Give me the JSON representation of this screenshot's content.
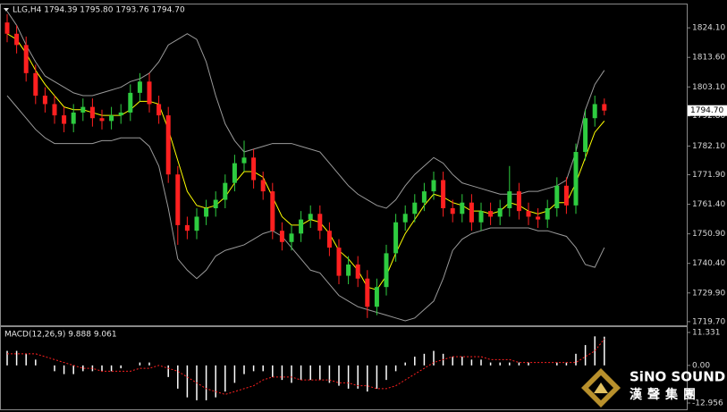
{
  "chart_data": [
    {
      "type": "candlestick",
      "title": "LLG,H4  1794.39 1795.80 1793.76 1794.70",
      "up_color": "#2ecc40",
      "down_color": "#ff2020",
      "open": [
        1826,
        1822,
        1818,
        1808,
        1800,
        1797,
        1793,
        1790,
        1794,
        1796,
        1792,
        1791,
        1793,
        1794,
        1801,
        1805,
        1797,
        1793,
        1772,
        1754,
        1752,
        1757,
        1760,
        1763,
        1769,
        1776,
        1778,
        1770,
        1766,
        1752,
        1748,
        1751,
        1756,
        1758,
        1752,
        1746,
        1736,
        1740,
        1735,
        1725,
        1732,
        1744,
        1755,
        1758,
        1762,
        1766,
        1770,
        1760,
        1758,
        1762,
        1755,
        1759,
        1757,
        1760,
        1766,
        1759,
        1757,
        1756,
        1760,
        1768,
        1761,
        1780,
        1792,
        1797
      ],
      "high": [
        1829,
        1825,
        1821,
        1811,
        1803,
        1800,
        1796,
        1797,
        1799,
        1799,
        1795,
        1796,
        1797,
        1804,
        1808,
        1808,
        1800,
        1796,
        1775,
        1757,
        1760,
        1763,
        1766,
        1772,
        1779,
        1784,
        1781,
        1773,
        1769,
        1755,
        1754,
        1759,
        1761,
        1761,
        1755,
        1749,
        1743,
        1743,
        1738,
        1735,
        1747,
        1758,
        1761,
        1765,
        1769,
        1773,
        1773,
        1763,
        1765,
        1765,
        1762,
        1762,
        1763,
        1775,
        1769,
        1762,
        1760,
        1763,
        1771,
        1771,
        1783,
        1795,
        1800,
        1799
      ],
      "low": [
        1819,
        1815,
        1805,
        1797,
        1794,
        1790,
        1787,
        1787,
        1791,
        1789,
        1788,
        1788,
        1790,
        1791,
        1798,
        1794,
        1790,
        1769,
        1747,
        1749,
        1749,
        1754,
        1757,
        1760,
        1766,
        1773,
        1767,
        1763,
        1749,
        1745,
        1745,
        1748,
        1753,
        1749,
        1743,
        1733,
        1733,
        1732,
        1721,
        1722,
        1729,
        1741,
        1752,
        1755,
        1759,
        1763,
        1757,
        1755,
        1755,
        1752,
        1752,
        1754,
        1754,
        1757,
        1756,
        1754,
        1753,
        1753,
        1757,
        1758,
        1758,
        1777,
        1789,
        1793
      ],
      "close": [
        1822,
        1818,
        1808,
        1800,
        1797,
        1793,
        1790,
        1794,
        1796,
        1792,
        1791,
        1793,
        1794,
        1801,
        1805,
        1797,
        1793,
        1772,
        1754,
        1752,
        1757,
        1760,
        1763,
        1769,
        1776,
        1778,
        1770,
        1766,
        1752,
        1748,
        1751,
        1756,
        1758,
        1752,
        1746,
        1736,
        1740,
        1735,
        1725,
        1732,
        1744,
        1755,
        1758,
        1762,
        1766,
        1770,
        1760,
        1758,
        1762,
        1755,
        1759,
        1757,
        1760,
        1766,
        1759,
        1757,
        1756,
        1760,
        1768,
        1761,
        1780,
        1792,
        1797,
        1794.7
      ],
      "series": [
        {
          "color": "#9a9a9a",
          "values": [
            1830,
            1825,
            1818,
            1812,
            1807,
            1805,
            1803,
            1801,
            1800,
            1800,
            1801,
            1802,
            1803,
            1805,
            1806,
            1808,
            1812,
            1818,
            1820,
            1822,
            1820,
            1812,
            1800,
            1790,
            1784,
            1780,
            1781,
            1782,
            1783,
            1783,
            1783,
            1782,
            1781,
            1780,
            1776,
            1772,
            1768,
            1765,
            1763,
            1761,
            1760,
            1763,
            1768,
            1772,
            1775,
            1778,
            1776,
            1772,
            1769,
            1768,
            1767,
            1766,
            1765,
            1765,
            1765,
            1766,
            1766,
            1767,
            1768,
            1770,
            1780,
            1795,
            1804,
            1809
          ]
        },
        {
          "color": "#9a9a9a",
          "values": [
            1800,
            1796,
            1792,
            1788,
            1785,
            1783,
            1783,
            1783,
            1783,
            1783,
            1784,
            1784,
            1785,
            1785,
            1785,
            1782,
            1775,
            1760,
            1742,
            1738,
            1735,
            1738,
            1743,
            1745,
            1746,
            1747,
            1749,
            1751,
            1752,
            1750,
            1746,
            1742,
            1738,
            1737,
            1733,
            1729,
            1727,
            1725,
            1724,
            1723,
            1722,
            1721,
            1720,
            1721,
            1724,
            1727,
            1735,
            1745,
            1749,
            1751,
            1752,
            1753,
            1753,
            1753,
            1753,
            1753,
            1752,
            1752,
            1751,
            1750,
            1746,
            1740,
            1739,
            1746
          ]
        },
        {
          "color": "#ffff00",
          "values": [
            1822,
            1820,
            1815,
            1809,
            1804,
            1800,
            1796,
            1795,
            1795,
            1794,
            1793,
            1793,
            1793,
            1795,
            1798,
            1798,
            1797,
            1788,
            1777,
            1766,
            1761,
            1760,
            1761,
            1764,
            1769,
            1773,
            1773,
            1771,
            1764,
            1757,
            1754,
            1754,
            1756,
            1755,
            1751,
            1745,
            1742,
            1738,
            1732,
            1731,
            1736,
            1744,
            1751,
            1756,
            1761,
            1765,
            1764,
            1762,
            1761,
            1759,
            1759,
            1758,
            1759,
            1762,
            1761,
            1759,
            1758,
            1759,
            1762,
            1762,
            1769,
            1778,
            1787,
            1791
          ]
        }
      ],
      "last_price": {
        "value": 1794.7,
        "label": "1794.70"
      },
      "ylim": [
        1718.4,
        1832.4
      ],
      "yticks": [
        {
          "value": 1824.1,
          "label": "1824.10"
        },
        {
          "value": 1813.6,
          "label": "1813.60"
        },
        {
          "value": 1803.1,
          "label": "1803.10"
        },
        {
          "value": 1792.8,
          "label": "1792.80"
        },
        {
          "value": 1782.1,
          "label": "1782.10"
        },
        {
          "value": 1771.9,
          "label": "1771.90"
        },
        {
          "value": 1761.4,
          "label": "1761.40"
        },
        {
          "value": 1750.9,
          "label": "1750.90"
        },
        {
          "value": 1740.4,
          "label": "1740.40"
        },
        {
          "value": 1729.9,
          "label": "1729.90"
        },
        {
          "value": 1719.7,
          "label": "1719.70"
        }
      ]
    },
    {
      "type": "macd",
      "title": "MACD(12,26,9) 9.888 9.061",
      "values": [
        5,
        5,
        4,
        2,
        0,
        -2,
        -3,
        -3,
        -2,
        -2,
        -2,
        -2,
        -1,
        0,
        1,
        1,
        0,
        -4,
        -8,
        -11,
        -12,
        -12,
        -11,
        -9,
        -6,
        -3,
        -2,
        -2,
        -4,
        -5,
        -6,
        -5,
        -5,
        -5,
        -6,
        -7,
        -8,
        -8,
        -9,
        -8,
        -5,
        -2,
        1,
        3,
        4,
        5,
        4,
        3,
        3,
        2,
        2,
        1,
        1,
        1,
        1,
        1,
        0,
        0,
        1,
        1,
        4,
        7,
        10,
        9.888
      ],
      "color": "#ffffff",
      "signal": {
        "color": "#ff2020",
        "values": [
          4,
          4,
          4,
          4,
          3,
          2,
          1,
          0,
          -1,
          -1,
          -2,
          -2,
          -2,
          -2,
          -1,
          -1,
          0,
          -1,
          -2,
          -4,
          -6,
          -8,
          -9,
          -10,
          -9,
          -8,
          -7,
          -5,
          -4,
          -4,
          -4,
          -5,
          -5,
          -5,
          -5,
          -6,
          -6,
          -7,
          -7,
          -8,
          -8,
          -7,
          -5,
          -3,
          -1,
          1,
          2,
          3,
          3,
          3,
          3,
          2,
          2,
          2,
          1,
          1,
          1,
          1,
          1,
          1,
          1,
          3,
          5,
          9.061
        ]
      },
      "ylim": [
        -15.11,
        13.18
      ],
      "yticks": [
        {
          "value": 11.331,
          "label": "11.331"
        },
        {
          "value": 0,
          "label": "0.00"
        },
        {
          "value": -12.956,
          "label": "-12.956"
        }
      ]
    }
  ],
  "logo": {
    "name": "SiNO SOUND",
    "chinese": "漢聲集團"
  }
}
